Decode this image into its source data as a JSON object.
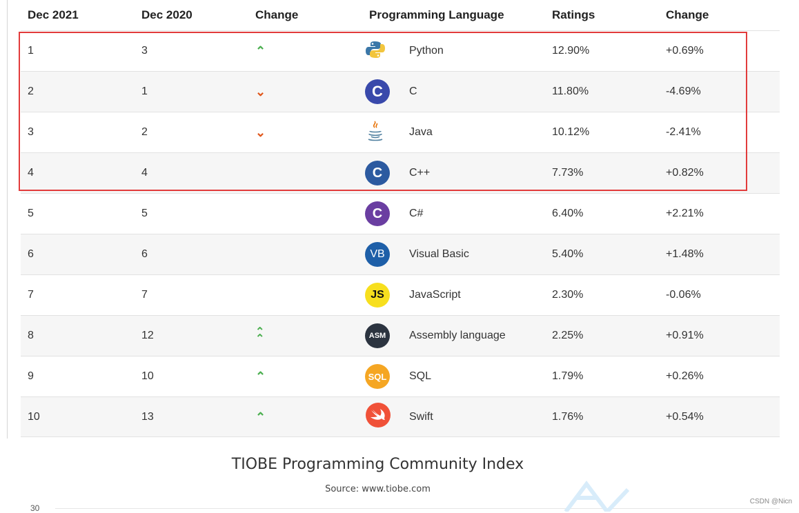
{
  "columns": [
    "Dec 2021",
    "Dec 2020",
    "Change",
    "Programming Language",
    "Ratings",
    "Change"
  ],
  "rows": [
    {
      "rank": "1",
      "prev": "3",
      "change_dir": "up",
      "lang": "Python",
      "logo_text": "",
      "rating": "12.90%",
      "delta": "+0.69%"
    },
    {
      "rank": "2",
      "prev": "1",
      "change_dir": "down",
      "lang": "C",
      "logo_text": "C",
      "rating": "11.80%",
      "delta": "-4.69%"
    },
    {
      "rank": "3",
      "prev": "2",
      "change_dir": "down",
      "lang": "Java",
      "logo_text": "",
      "rating": "10.12%",
      "delta": "-2.41%"
    },
    {
      "rank": "4",
      "prev": "4",
      "change_dir": "none",
      "lang": "C++",
      "logo_text": "C",
      "rating": "7.73%",
      "delta": "+0.82%"
    },
    {
      "rank": "5",
      "prev": "5",
      "change_dir": "none",
      "lang": "C#",
      "logo_text": "C",
      "rating": "6.40%",
      "delta": "+2.21%"
    },
    {
      "rank": "6",
      "prev": "6",
      "change_dir": "none",
      "lang": "Visual Basic",
      "logo_text": "VB",
      "rating": "5.40%",
      "delta": "+1.48%"
    },
    {
      "rank": "7",
      "prev": "7",
      "change_dir": "none",
      "lang": "JavaScript",
      "logo_text": "JS",
      "rating": "2.30%",
      "delta": "-0.06%"
    },
    {
      "rank": "8",
      "prev": "12",
      "change_dir": "double-up",
      "lang": "Assembly language",
      "logo_text": "ASM",
      "rating": "2.25%",
      "delta": "+0.91%"
    },
    {
      "rank": "9",
      "prev": "10",
      "change_dir": "up",
      "lang": "SQL",
      "logo_text": "SQL",
      "rating": "1.79%",
      "delta": "+0.26%"
    },
    {
      "rank": "10",
      "prev": "13",
      "change_dir": "up",
      "lang": "Swift",
      "logo_text": "",
      "rating": "1.76%",
      "delta": "+0.54%"
    }
  ],
  "chart": {
    "title": "TIOBE Programming Community Index",
    "subtitle": "Source: www.tiobe.com",
    "ytick": "30"
  },
  "watermark": "CSDN @Nicn",
  "colors": {
    "up": "#4caf50",
    "down": "#e0561a",
    "highlight": "#e23b3b"
  }
}
